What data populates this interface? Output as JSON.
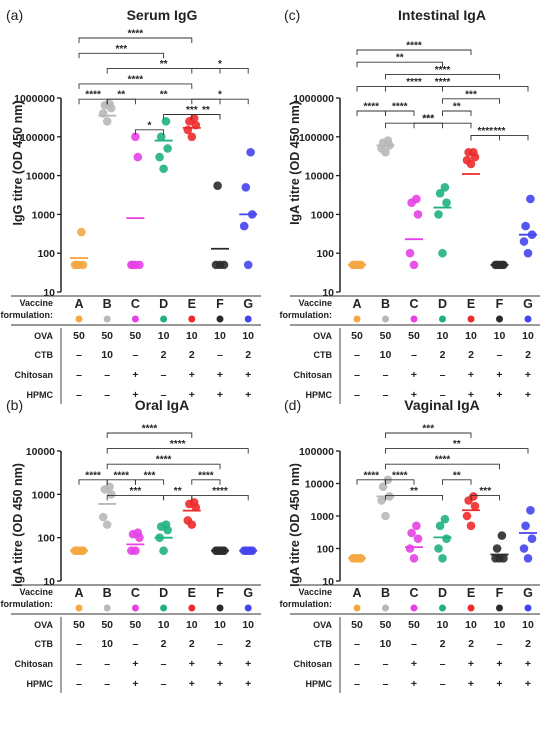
{
  "colors": [
    "#f5a742",
    "#b8b8b8",
    "#e640e6",
    "#20b27e",
    "#ee2a2a",
    "#2b2b2b",
    "#4444ee"
  ],
  "table": {
    "formulation_label": [
      "Vaccine",
      "formulation:"
    ],
    "row_labels": [
      "OVA",
      "CTB",
      "Chitosan",
      "HPMC"
    ],
    "rows": [
      [
        "50",
        "50",
        "50",
        "10",
        "10",
        "10",
        "10"
      ],
      [
        "–",
        "10",
        "–",
        "2",
        "2",
        "–",
        "2"
      ],
      [
        "–",
        "–",
        "+",
        "–",
        "+",
        "+",
        "+"
      ],
      [
        "–",
        "–",
        "+",
        "–",
        "+",
        "+",
        "+"
      ]
    ]
  },
  "chart_data": [
    {
      "panel": "(a)",
      "title": "Serum IgG",
      "ylabel": "IgG titre (OD 450 nm)",
      "type": "scatter",
      "categories": [
        "A",
        "B",
        "C",
        "D",
        "E",
        "F",
        "G"
      ],
      "ylim": [
        10,
        1000000
      ],
      "yscale": "log",
      "yticks": [
        "10",
        "100",
        "1000",
        "10000",
        "100000",
        "1000000"
      ],
      "points": [
        [
          50,
          50,
          50,
          50,
          350
        ],
        [
          250000,
          400000,
          550000,
          650000,
          700000
        ],
        [
          50,
          50,
          50,
          50,
          30000,
          100000
        ],
        [
          15000,
          30000,
          50000,
          100000,
          250000
        ],
        [
          100000,
          150000,
          200000,
          250000,
          300000
        ],
        [
          50,
          50,
          50,
          5500
        ],
        [
          50,
          500,
          1000,
          5000,
          40000
        ]
      ],
      "means": [
        75,
        350000,
        800,
        80000,
        170000,
        130,
        1000
      ],
      "brackets": [
        {
          "a": 0,
          "b": 4,
          "label": "****"
        },
        {
          "a": 0,
          "b": 3,
          "label": "***"
        },
        {
          "a": 1,
          "b": 5,
          "label": "**"
        },
        {
          "a": 4,
          "b": 6,
          "label": "*"
        },
        {
          "a": 0,
          "b": 4,
          "label": "****"
        },
        {
          "a": 0,
          "b": 1,
          "label": "****"
        },
        {
          "a": 1,
          "b": 2,
          "label": "**"
        },
        {
          "a": 1,
          "b": 5,
          "label": "**"
        },
        {
          "a": 4,
          "b": 6,
          "label": "*"
        },
        {
          "a": 4,
          "b": 5,
          "label": "**"
        },
        {
          "a": 3,
          "b": 5,
          "label": "***"
        },
        {
          "a": 2,
          "b": 3,
          "label": "*"
        }
      ]
    },
    {
      "panel": "(c)",
      "title": "Intestinal IgA",
      "ylabel": "IgA titre (OD 450 nm)",
      "type": "scatter",
      "categories": [
        "A",
        "B",
        "C",
        "D",
        "E",
        "F",
        "G"
      ],
      "ylim": [
        10,
        1000000
      ],
      "yscale": "log",
      "yticks": [
        "10",
        "100",
        "1000",
        "10000",
        "100000",
        "1000000"
      ],
      "points": [
        [
          50,
          50,
          50,
          50,
          50
        ],
        [
          40000,
          50000,
          60000,
          70000,
          80000
        ],
        [
          50,
          100,
          1000,
          2000,
          2500
        ],
        [
          100,
          1000,
          2000,
          3500,
          5000
        ],
        [
          20000,
          25000,
          30000,
          40000,
          40000
        ],
        [
          50,
          50,
          50,
          50,
          50
        ],
        [
          100,
          200,
          300,
          500,
          2500
        ]
      ],
      "means": [
        50,
        60000,
        230,
        1500,
        11000,
        50,
        300
      ],
      "brackets": [
        {
          "a": 0,
          "b": 4,
          "label": "****"
        },
        {
          "a": 0,
          "b": 3,
          "label": "**"
        },
        {
          "a": 1,
          "b": 5,
          "label": "****"
        },
        {
          "a": 0,
          "b": 6,
          "label": "****"
        },
        {
          "a": 1,
          "b": 3,
          "label": "****"
        },
        {
          "a": 3,
          "b": 5,
          "label": "***"
        },
        {
          "a": 0,
          "b": 1,
          "label": "****"
        },
        {
          "a": 1,
          "b": 2,
          "label": "****"
        },
        {
          "a": 3,
          "b": 4,
          "label": "**"
        },
        {
          "a": 2,
          "b": 3,
          "label": "***"
        },
        {
          "a": 1,
          "b": 4,
          "label": "***"
        },
        {
          "a": 4,
          "b": 5,
          "label": "****"
        },
        {
          "a": 4,
          "b": 6,
          "label": "***"
        }
      ]
    },
    {
      "panel": "(b)",
      "title": "Oral IgA",
      "ylabel": "IgA titre (OD 450 nm)",
      "type": "scatter",
      "categories": [
        "A",
        "B",
        "C",
        "D",
        "E",
        "F",
        "G"
      ],
      "ylim": [
        10,
        10000
      ],
      "yscale": "log",
      "yticks": [
        "10",
        "100",
        "1000",
        "10000"
      ],
      "points": [
        [
          50,
          50,
          50,
          50,
          50
        ],
        [
          200,
          300,
          1000,
          1300,
          1500
        ],
        [
          50,
          50,
          100,
          120,
          130
        ],
        [
          50,
          100,
          150,
          180,
          200
        ],
        [
          200,
          250,
          500,
          600,
          650
        ],
        [
          50,
          50,
          50,
          50,
          50
        ],
        [
          50,
          50,
          50,
          50,
          50
        ]
      ],
      "means": [
        50,
        600,
        70,
        100,
        420,
        50,
        50
      ],
      "brackets": [
        {
          "a": 1,
          "b": 4,
          "label": "****"
        },
        {
          "a": 1,
          "b": 6,
          "label": "****"
        },
        {
          "a": 1,
          "b": 5,
          "label": "****"
        },
        {
          "a": 0,
          "b": 1,
          "label": "****"
        },
        {
          "a": 1,
          "b": 2,
          "label": "****"
        },
        {
          "a": 2,
          "b": 3,
          "label": "***"
        },
        {
          "a": 4,
          "b": 5,
          "label": "****"
        },
        {
          "a": 1,
          "b": 3,
          "label": "***"
        },
        {
          "a": 3,
          "b": 4,
          "label": "**"
        },
        {
          "a": 4,
          "b": 6,
          "label": "****"
        }
      ]
    },
    {
      "panel": "(d)",
      "title": "Vaginal IgA",
      "ylabel": "IgA titre (OD 450 nm)",
      "type": "scatter",
      "categories": [
        "A",
        "B",
        "C",
        "D",
        "E",
        "F",
        "G"
      ],
      "ylim": [
        10,
        100000
      ],
      "yscale": "log",
      "yticks": [
        "10",
        "100",
        "1000",
        "10000",
        "100000"
      ],
      "points": [
        [
          50,
          50,
          50,
          50,
          50
        ],
        [
          1000,
          3000,
          4000,
          8000,
          13000
        ],
        [
          50,
          100,
          200,
          300,
          500
        ],
        [
          50,
          100,
          200,
          500,
          800
        ],
        [
          500,
          1000,
          2000,
          3000,
          4000
        ],
        [
          50,
          50,
          50,
          100,
          250
        ],
        [
          50,
          100,
          200,
          500,
          1500
        ]
      ],
      "means": [
        50,
        4000,
        110,
        220,
        1500,
        65,
        300
      ],
      "brackets": [
        {
          "a": 1,
          "b": 4,
          "label": "***"
        },
        {
          "a": 1,
          "b": 6,
          "label": "**"
        },
        {
          "a": 1,
          "b": 5,
          "label": "****"
        },
        {
          "a": 0,
          "b": 1,
          "label": "****"
        },
        {
          "a": 1,
          "b": 2,
          "label": "****"
        },
        {
          "a": 3,
          "b": 4,
          "label": "**"
        },
        {
          "a": 1,
          "b": 3,
          "label": "**"
        },
        {
          "a": 4,
          "b": 5,
          "label": "***"
        }
      ]
    }
  ]
}
